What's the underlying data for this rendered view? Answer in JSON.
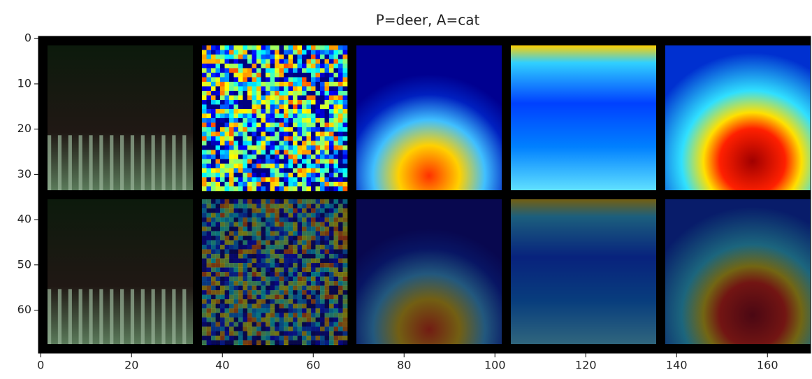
{
  "chart_data": {
    "type": "image",
    "title": "P=deer, A=cat",
    "xlim": [
      -0.5,
      169.5
    ],
    "ylim": [
      -0.5,
      69.5
    ],
    "xticks": [
      0,
      20,
      40,
      60,
      80,
      100,
      120,
      140,
      160
    ],
    "yticks": [
      0,
      10,
      20,
      30,
      40,
      50,
      60
    ]
  }
}
